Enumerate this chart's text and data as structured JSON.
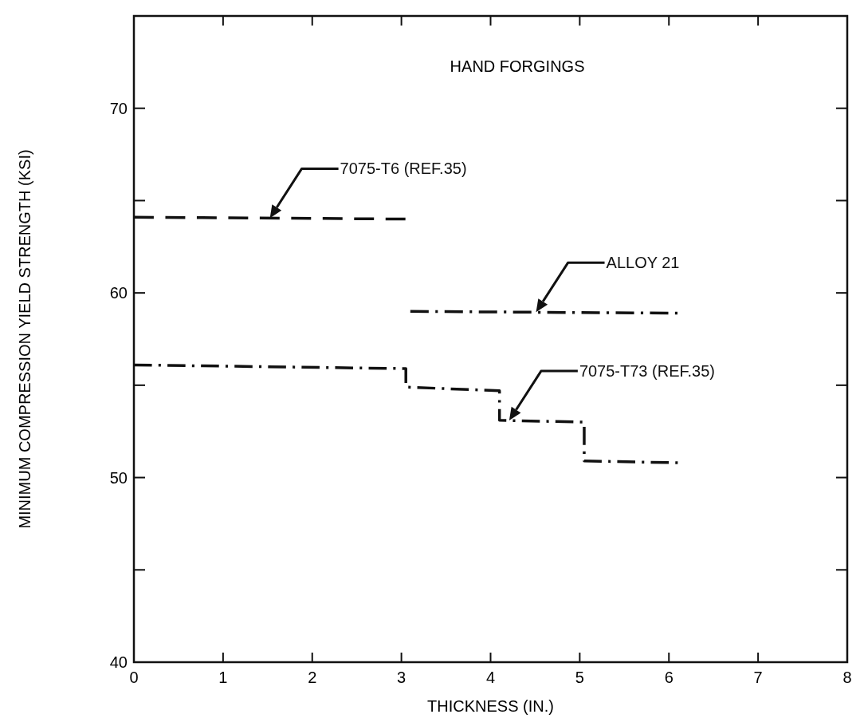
{
  "chart_data": {
    "type": "line",
    "title": "HAND FORGINGS",
    "xlabel": "THICKNESS (IN.)",
    "ylabel": "MINIMUM COMPRESSION YIELD STRENGTH (KSI)",
    "xlim": [
      0,
      8
    ],
    "xticks": [
      0,
      1,
      2,
      3,
      4,
      5,
      6,
      7,
      8
    ],
    "ylim": [
      40,
      75
    ],
    "yticks": [
      40,
      {
        "value": 45,
        "label": null
      },
      50,
      {
        "value": 55,
        "label": null
      },
      60,
      {
        "value": 65,
        "label": null
      },
      70
    ],
    "grid": false,
    "marker": "none",
    "series": [
      {
        "name": "7075-T6 (REF.35)",
        "color": "#111111",
        "line_style": "dashed",
        "x": [
          0,
          3.05
        ],
        "values": [
          64.1,
          64.0
        ]
      },
      {
        "name": "ALLOY 21",
        "color": "#111111",
        "line_style": "dashdot",
        "x": [
          3.1,
          6.1
        ],
        "values": [
          59.0,
          58.9
        ]
      },
      {
        "name": "7075-T73 (REF.35)",
        "color": "#111111",
        "line_style": "dashdot",
        "x": [
          0,
          3.05,
          3.05,
          4.1,
          4.1,
          5.05,
          5.05,
          6.1
        ],
        "values": [
          56.1,
          55.9,
          54.9,
          54.7,
          53.1,
          53.0,
          50.9,
          50.8
        ]
      }
    ]
  }
}
